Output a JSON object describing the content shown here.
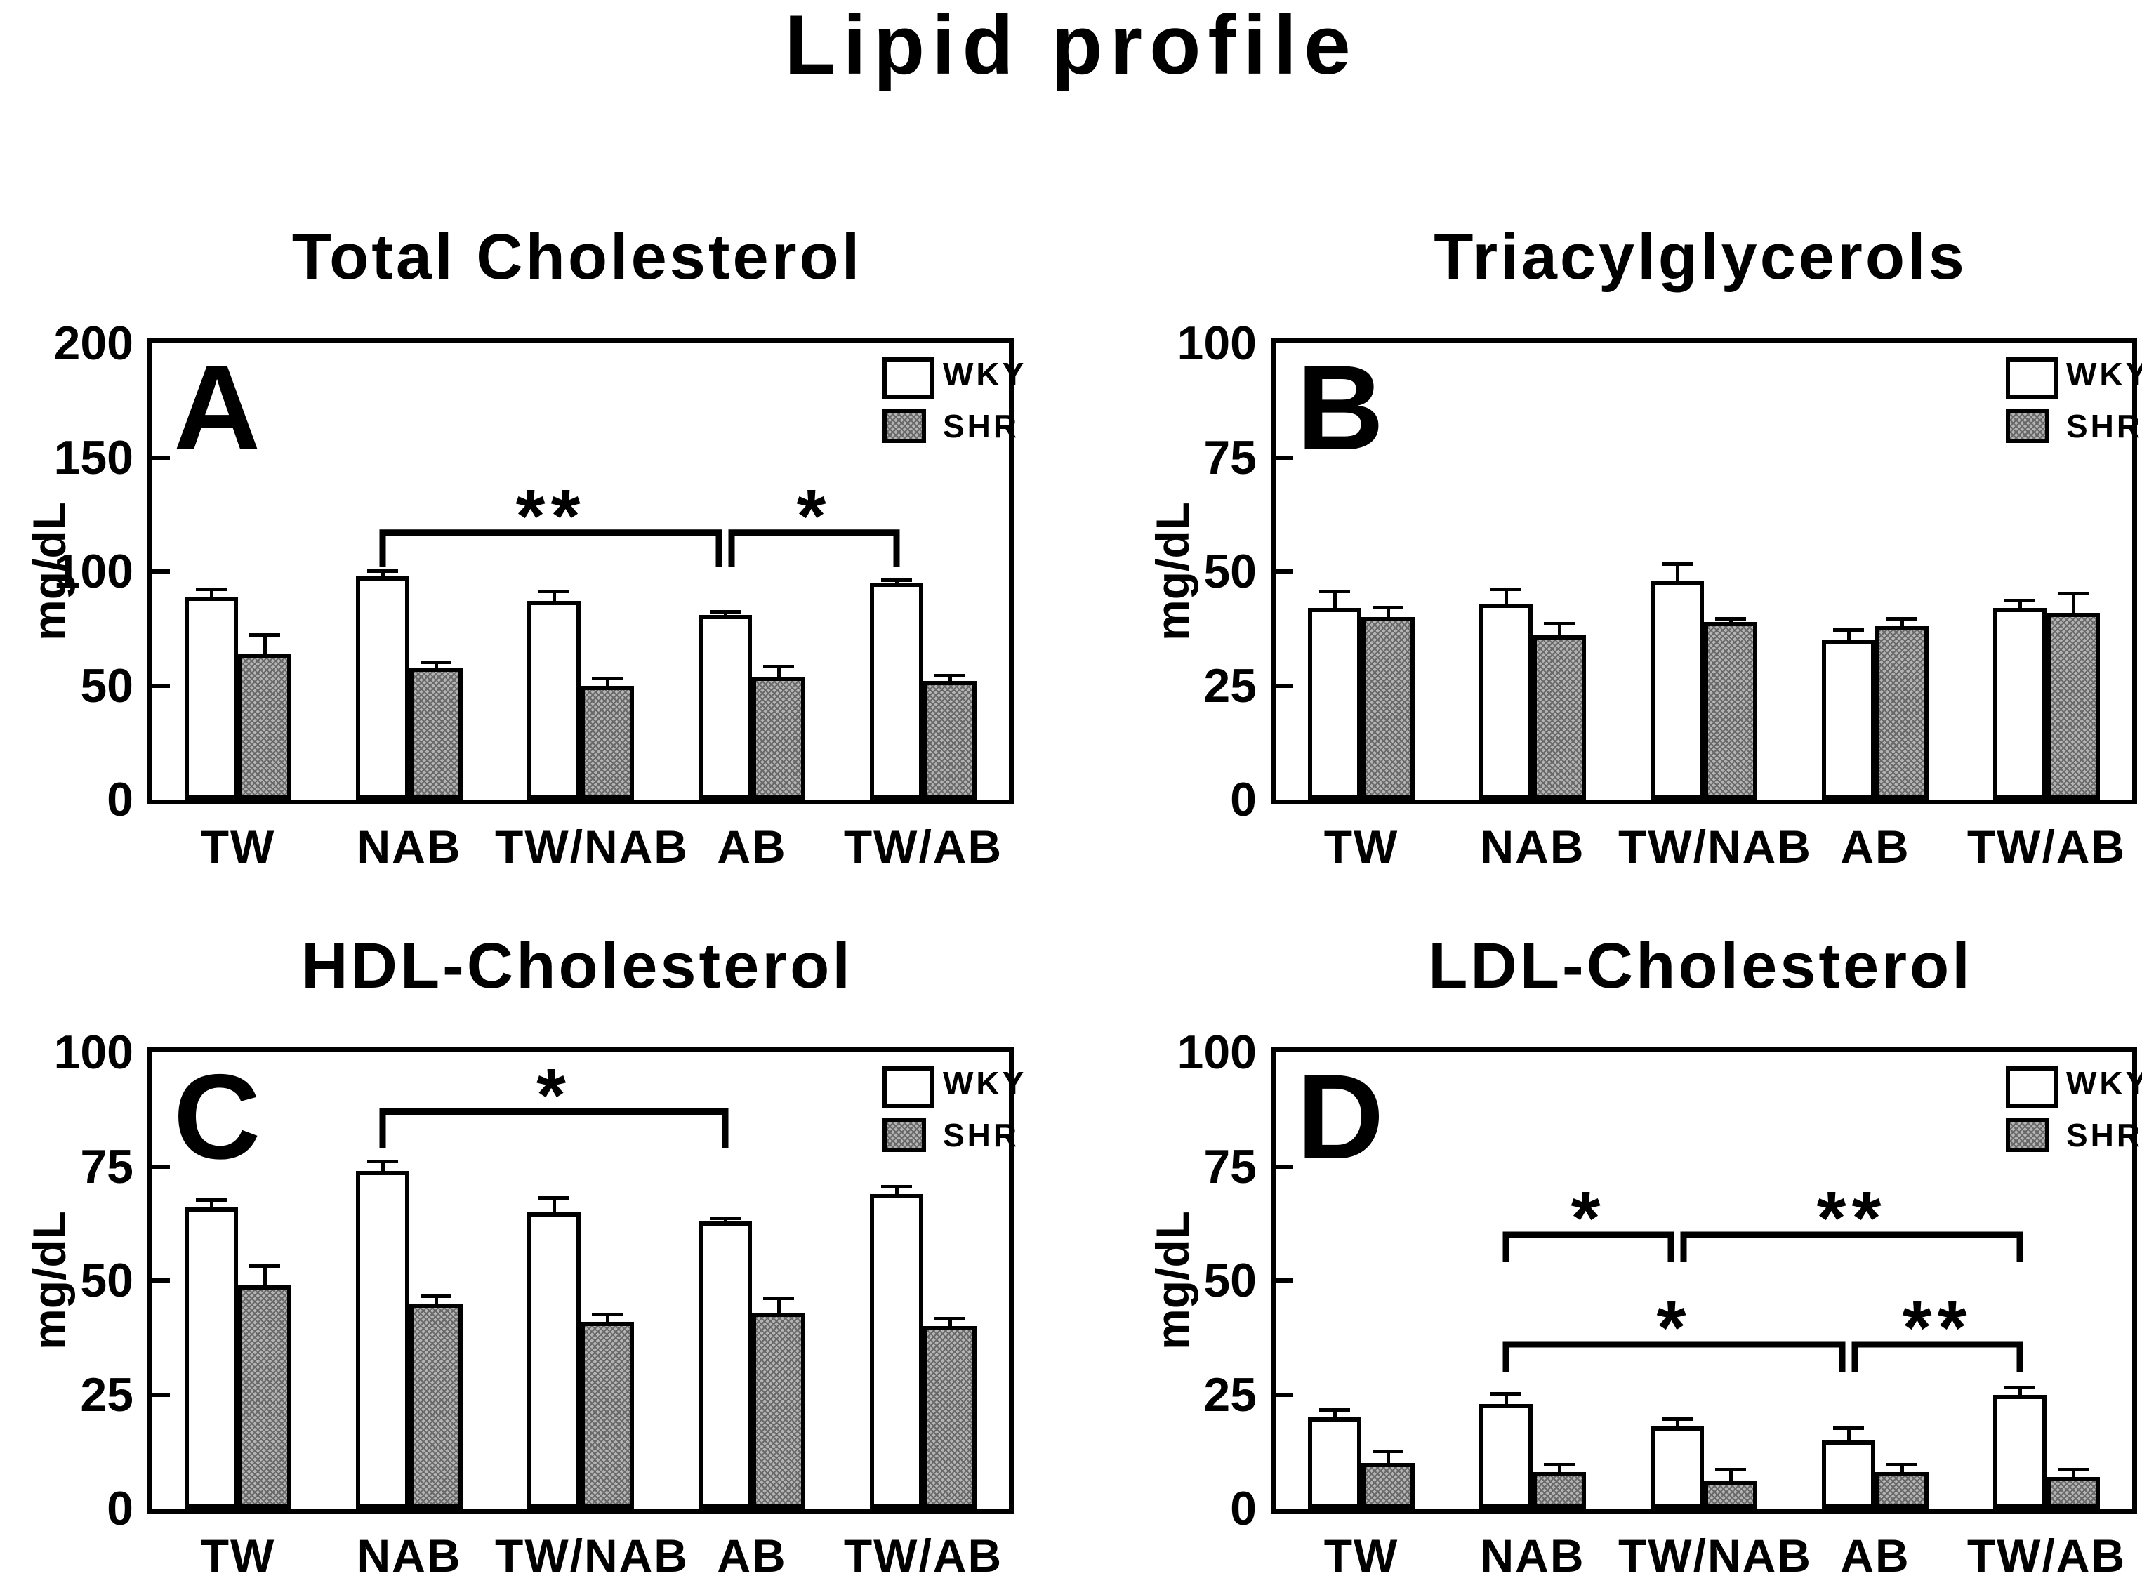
{
  "figure_title": "Lipid profile",
  "ylabel": "mg/dL",
  "categories": [
    "TW",
    "NAB",
    "TW/NAB",
    "AB",
    "TW/AB"
  ],
  "legend": [
    "WKY",
    "SHR"
  ],
  "colors": {
    "wky_fill": "#ffffff",
    "shr_fill": "#b4b4b4",
    "stroke": "#000000",
    "background": "#ffffff"
  },
  "chart_data": [
    {
      "panel": "A",
      "type": "bar",
      "title": "Total Cholesterol",
      "ylabel": "mg/dL",
      "ylim": [
        0,
        200
      ],
      "yticks": [
        0,
        50,
        100,
        150,
        200
      ],
      "grid": false,
      "legend_position": "top-right",
      "categories": [
        "TW",
        "NAB",
        "TW/NAB",
        "AB",
        "TW/AB"
      ],
      "series": [
        {
          "name": "WKY",
          "values": [
            89,
            98,
            87,
            81,
            95
          ],
          "errors": [
            4,
            3,
            5,
            2,
            2
          ]
        },
        {
          "name": "SHR",
          "values": [
            64,
            58,
            50,
            54,
            52
          ],
          "errors": [
            9,
            3,
            4,
            5,
            3
          ]
        }
      ],
      "significance_brackets": [
        {
          "from": "NAB",
          "to": "AB",
          "label": "**",
          "y": 117,
          "drop_to": 102
        },
        {
          "from": "AB",
          "to": "TW/AB",
          "label": "*",
          "y": 117,
          "drop_to": 102
        }
      ]
    },
    {
      "panel": "B",
      "type": "bar",
      "title": "Triacylglycerols",
      "ylabel": "mg/dL",
      "ylim": [
        0,
        100
      ],
      "yticks": [
        0,
        25,
        50,
        75,
        100
      ],
      "grid": false,
      "legend_position": "top-right",
      "categories": [
        "TW",
        "NAB",
        "TW/NAB",
        "AB",
        "TW/AB"
      ],
      "series": [
        {
          "name": "WKY",
          "values": [
            42,
            43,
            48,
            35,
            42
          ],
          "errors": [
            4,
            3.5,
            4,
            2.5,
            2
          ]
        },
        {
          "name": "SHR",
          "values": [
            40,
            36,
            39,
            38,
            41
          ],
          "errors": [
            2.5,
            3,
            1,
            2,
            4.5
          ]
        }
      ],
      "significance_brackets": []
    },
    {
      "panel": "C",
      "type": "bar",
      "title": "HDL-Cholesterol",
      "ylabel": "mg/dL",
      "ylim": [
        0,
        100
      ],
      "yticks": [
        0,
        25,
        50,
        75,
        100
      ],
      "grid": false,
      "legend_position": "top-right",
      "categories": [
        "TW",
        "NAB",
        "TW/NAB",
        "AB",
        "TW/AB"
      ],
      "series": [
        {
          "name": "WKY",
          "values": [
            66,
            74,
            65,
            63,
            69
          ],
          "errors": [
            2,
            2.5,
            3.5,
            1,
            2
          ]
        },
        {
          "name": "SHR",
          "values": [
            49,
            45,
            41,
            43,
            40
          ],
          "errors": [
            4.5,
            2,
            2,
            3.5,
            2
          ]
        }
      ],
      "significance_brackets": [
        {
          "from": "NAB",
          "to": "AB",
          "label": "*",
          "y": 87,
          "drop_to": 79
        }
      ]
    },
    {
      "panel": "D",
      "type": "bar",
      "title": "LDL-Cholesterol",
      "ylabel": "mg/dL",
      "ylim": [
        0,
        100
      ],
      "yticks": [
        0,
        25,
        50,
        75,
        100
      ],
      "grid": false,
      "legend_position": "top-right",
      "categories": [
        "TW",
        "NAB",
        "TW/NAB",
        "AB",
        "TW/AB"
      ],
      "series": [
        {
          "name": "WKY",
          "values": [
            20,
            23,
            18,
            15,
            25
          ],
          "errors": [
            2,
            2.5,
            2,
            3,
            2
          ]
        },
        {
          "name": "SHR",
          "values": [
            10,
            8,
            6,
            8,
            7
          ],
          "errors": [
            3,
            2,
            3,
            2,
            2
          ]
        }
      ],
      "significance_brackets": [
        {
          "from": "NAB",
          "to": "TW/NAB",
          "label": "*",
          "y": 60,
          "drop_to": 54
        },
        {
          "from": "TW/NAB",
          "to": "TW/AB",
          "label": "**",
          "y": 60,
          "drop_to": 54
        },
        {
          "from": "NAB",
          "to": "AB",
          "label": "*",
          "y": 36,
          "drop_to": 30
        },
        {
          "from": "AB",
          "to": "TW/AB",
          "label": "**",
          "y": 36,
          "drop_to": 30
        }
      ]
    }
  ]
}
